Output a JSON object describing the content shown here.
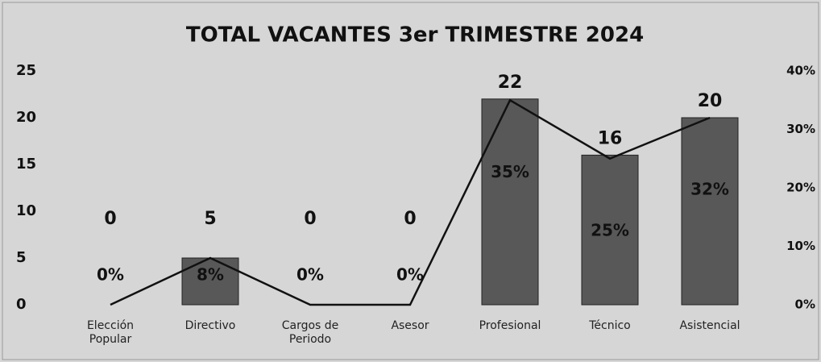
{
  "chart_data": {
    "type": "bar_line",
    "title": "TOTAL VACANTES 3er TRIMESTRE 2024",
    "categories": [
      "Elección Popular",
      "Directivo",
      "Cargos de Periodo",
      "Asesor",
      "Profesional",
      "Técnico",
      "Asistencial"
    ],
    "series": [
      {
        "type": "bar",
        "color": "#585858",
        "values": [
          0,
          5,
          0,
          0,
          22,
          16,
          20
        ]
      },
      {
        "type": "line",
        "axis": "y2",
        "color": "#111111",
        "values": [
          0,
          8,
          0,
          0,
          35,
          25,
          32
        ],
        "value_labels": [
          "0%",
          "8%",
          "0%",
          "0%",
          "35%",
          "25%",
          "32%"
        ]
      }
    ],
    "ylim": [
      0,
      25
    ],
    "yticks": [
      0,
      5,
      10,
      15,
      20,
      25
    ],
    "y2lim": [
      0,
      40
    ],
    "y2ticks": [
      {
        "value": 0,
        "label": "0%"
      },
      {
        "value": 10,
        "label": "10%"
      },
      {
        "value": 20,
        "label": "20%"
      },
      {
        "value": 30,
        "label": "30%"
      },
      {
        "value": 40,
        "label": "40%"
      }
    ],
    "grid": false
  }
}
